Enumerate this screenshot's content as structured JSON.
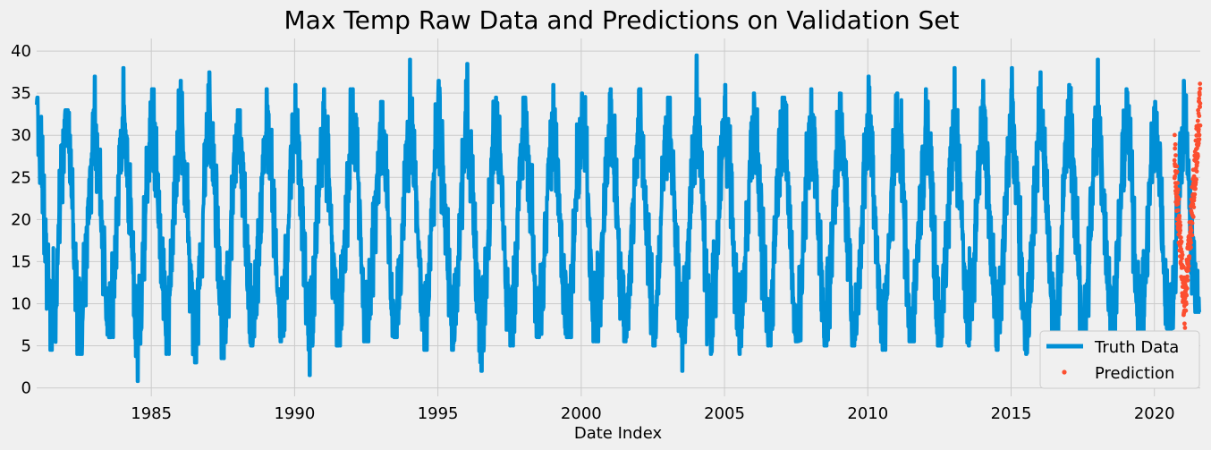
{
  "chart_data": {
    "type": "line",
    "title": "Max Temp Raw Data and Predictions on Validation Set",
    "xlabel": "Date Index",
    "ylabel": "",
    "xlim": [
      1981.0,
      2021.6
    ],
    "ylim": [
      -1,
      41.5
    ],
    "x_ticks": [
      1985,
      1990,
      1995,
      2000,
      2005,
      2010,
      2015,
      2020
    ],
    "y_ticks": [
      0,
      5,
      10,
      15,
      20,
      25,
      30,
      35,
      40
    ],
    "grid": true,
    "legend_position": "lower-right",
    "series": [
      {
        "name": "Truth Data",
        "style": "line",
        "color": "#008fd5",
        "x_range": [
          1981.0,
          2021.6
        ],
        "annual_summer_max": [
          34.5,
          33.0,
          37.0,
          38.0,
          35.5,
          36.5,
          37.5,
          33.0,
          35.5,
          36.0,
          35.5,
          35.5,
          34.0,
          39.0,
          36.5,
          38.5,
          34.5,
          34.5,
          36.0,
          35.0,
          35.5,
          35.5,
          34.5,
          39.5,
          36.0,
          35.0,
          34.5,
          35.5,
          35.0,
          37.0,
          35.0,
          35.5,
          38.0,
          36.5,
          38.0,
          37.5,
          36.0,
          39.0,
          35.5,
          34.0,
          36.5
        ],
        "annual_winter_min": [
          4.5,
          4.0,
          6.0,
          0.8,
          4.0,
          3.0,
          3.5,
          5.0,
          5.5,
          1.5,
          5.0,
          5.5,
          6.0,
          4.5,
          4.5,
          2.0,
          5.0,
          6.0,
          6.0,
          5.5,
          5.5,
          5.0,
          2.0,
          4.0,
          4.0,
          5.0,
          5.5,
          5.0,
          5.0,
          4.5,
          5.5,
          5.0,
          5.0,
          4.5,
          4.0,
          4.5,
          5.0,
          4.0,
          5.0,
          7.0,
          9.0
        ],
        "typical_low": 8.0,
        "typical_high": 30.5
      },
      {
        "name": "Prediction",
        "style": "markers",
        "color": "#fc4f30",
        "x_range": [
          2020.7,
          2021.6
        ],
        "start_value": 27.5,
        "trough_value": 9.5,
        "end_value": 34.0
      }
    ]
  }
}
